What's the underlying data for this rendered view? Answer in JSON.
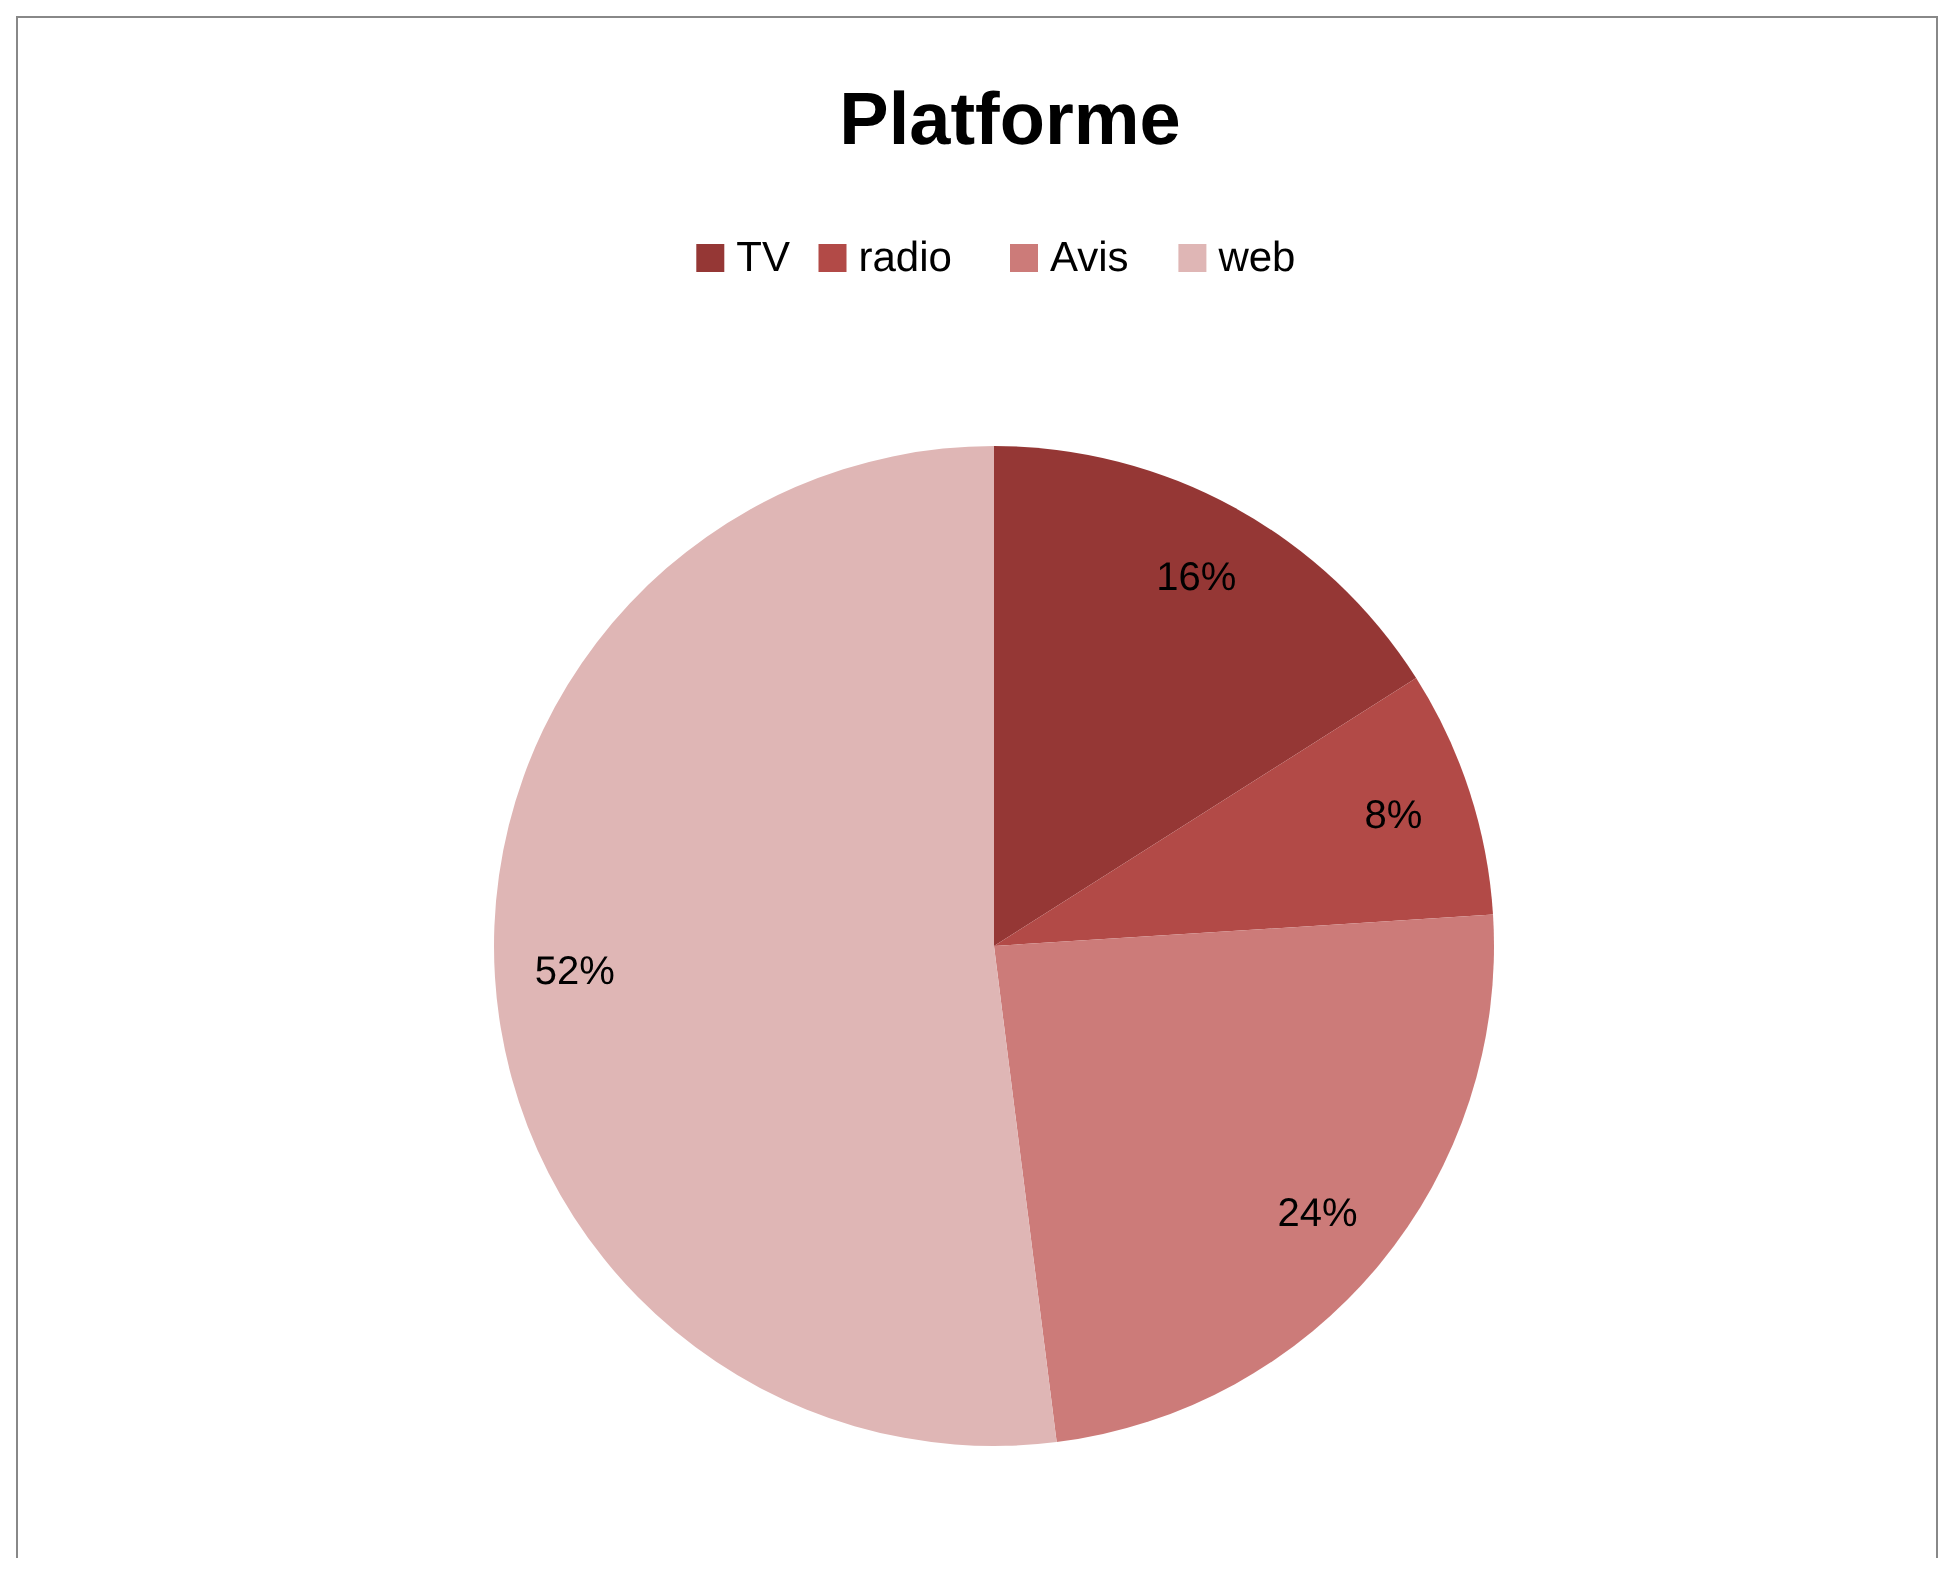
{
  "chart_data": {
    "type": "pie",
    "title": "Platforme",
    "categories": [
      "TV",
      "radio",
      "Avis",
      "web"
    ],
    "values": [
      16,
      8,
      24,
      52
    ],
    "colors": [
      "#953735",
      "#b24a47",
      "#cc7b79",
      "#dfb6b5"
    ],
    "value_labels": [
      "16%",
      "8%",
      "24%",
      "52%"
    ],
    "legend": "top"
  }
}
